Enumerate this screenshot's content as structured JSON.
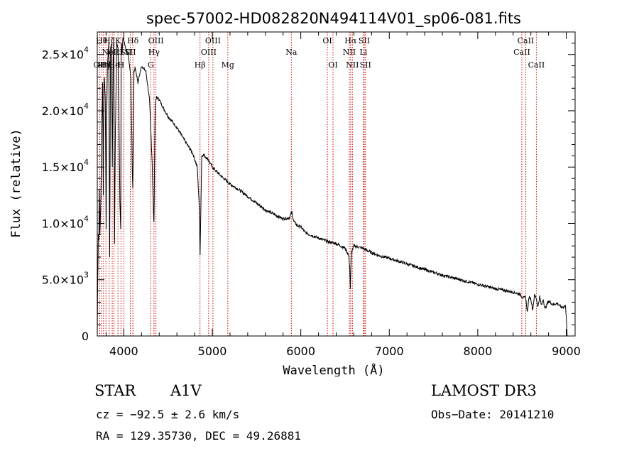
{
  "chart_data": {
    "type": "line",
    "title": "spec-57002-HD082820N494114V01_sp06-081.fits",
    "xlabel": "Wavelength (Å)",
    "ylabel": "Flux (relative)",
    "xlim": [
      3700,
      9100
    ],
    "ylim": [
      0,
      27000
    ],
    "xticks": [
      4000,
      5000,
      6000,
      7000,
      8000,
      9000
    ],
    "yticks": [
      {
        "value": 0,
        "mant": "0",
        "exp": ""
      },
      {
        "value": 5000,
        "mant": "5.0×10",
        "exp": "3"
      },
      {
        "value": 10000,
        "mant": "1.0×10",
        "exp": "4"
      },
      {
        "value": 15000,
        "mant": "1.5×10",
        "exp": "4"
      },
      {
        "value": 20000,
        "mant": "2.0×10",
        "exp": "4"
      },
      {
        "value": 25000,
        "mant": "2.5×10",
        "exp": "4"
      }
    ],
    "spectrum": {
      "x": [
        3700,
        3705,
        3712,
        3718,
        3722,
        3726,
        3730,
        3740,
        3750,
        3760,
        3768,
        3771,
        3775,
        3780,
        3790,
        3797,
        3800,
        3805,
        3815,
        3830,
        3836,
        3840,
        3850,
        3860,
        3870,
        3880,
        3887,
        3890,
        3895,
        3905,
        3920,
        3935,
        3945,
        3955,
        3965,
        3970,
        3975,
        3980,
        3990,
        4000,
        4010,
        4030,
        4050,
        4080,
        4095,
        4101,
        4108,
        4115,
        4130,
        4160,
        4200,
        4250,
        4290,
        4320,
        4335,
        4341,
        4347,
        4355,
        4370,
        4400,
        4450,
        4500,
        4600,
        4700,
        4780,
        4830,
        4850,
        4857,
        4862,
        4867,
        4872,
        4880,
        4900,
        4950,
        5000,
        5100,
        5200,
        5300,
        5400,
        5500,
        5600,
        5700,
        5800,
        5870,
        5900,
        5920,
        5960,
        6000,
        6050,
        6100,
        6200,
        6300,
        6400,
        6500,
        6540,
        6553,
        6560,
        6566,
        6575,
        6600,
        6700,
        6800,
        6900,
        7000,
        7200,
        7400,
        7600,
        7800,
        8000,
        8200,
        8400,
        8480,
        8500,
        8520,
        8540,
        8560,
        8580,
        8600,
        8620,
        8640,
        8660,
        8680,
        8700,
        8720,
        8740,
        8760,
        8800,
        8850,
        8900,
        8950,
        8990,
        9000,
        9010
      ],
      "y": [
        0,
        5000,
        9000,
        8500,
        13000,
        11500,
        9000,
        12000,
        17500,
        22500,
        12500,
        18000,
        22000,
        23000,
        21000,
        13500,
        9500,
        18500,
        24000,
        26000,
        15000,
        7000,
        25500,
        26000,
        15000,
        24500,
        26500,
        20000,
        8200,
        18000,
        26000,
        25500,
        20000,
        12000,
        9500,
        25000,
        26000,
        25000,
        26500,
        26200,
        26000,
        25200,
        25000,
        23000,
        15000,
        13000,
        17000,
        23500,
        23800,
        22500,
        24000,
        23500,
        21000,
        15500,
        11000,
        10000,
        15000,
        20500,
        21200,
        21000,
        20200,
        19500,
        18500,
        17200,
        16200,
        15000,
        12000,
        9500,
        7300,
        9500,
        12000,
        16000,
        16100,
        15700,
        15000,
        14200,
        13500,
        13000,
        12400,
        11800,
        11200,
        10800,
        10400,
        10500,
        11000,
        10200,
        9800,
        9700,
        9200,
        9000,
        8700,
        8400,
        8200,
        7800,
        7200,
        6200,
        4200,
        6000,
        7500,
        8000,
        7800,
        7400,
        7100,
        6900,
        6400,
        5900,
        5400,
        5000,
        4600,
        4200,
        3900,
        3700,
        3500,
        3350,
        3500,
        2100,
        3500,
        3300,
        2300,
        3600,
        3400,
        2600,
        3500,
        2700,
        3300,
        2400,
        3100,
        2800,
        2900,
        2500,
        2700,
        1800,
        0
      ]
    },
    "lines": [
      {
        "wave": 3727,
        "label": "OII",
        "row": 3
      },
      {
        "wave": 3750,
        "label": "Hθ",
        "row": 1
      },
      {
        "wave": 3771,
        "label": "Hη",
        "row": 3
      },
      {
        "wave": 3798,
        "label": "Hζ",
        "row": 3
      },
      {
        "wave": 3835,
        "label": "Hζ",
        "row": 1
      },
      {
        "wave": 3869,
        "label": "NeIII",
        "row": 2
      },
      {
        "wave": 3889,
        "label": "He",
        "row": 3
      },
      {
        "wave": 3934,
        "label": "K",
        "row": 1
      },
      {
        "wave": 3968,
        "label": "H",
        "row": 3
      },
      {
        "wave": 4000,
        "label": "εSII",
        "row": 2
      },
      {
        "wave": 4102,
        "label": "Hδ",
        "row": 1
      },
      {
        "wave": 4073,
        "label": "SII",
        "row": 2
      },
      {
        "wave": 4304,
        "label": "G",
        "row": 3
      },
      {
        "wave": 4341,
        "label": "Hγ",
        "row": 2
      },
      {
        "wave": 4363,
        "label": "OIII",
        "row": 1
      },
      {
        "wave": 4861,
        "label": "Hβ",
        "row": 3
      },
      {
        "wave": 4959,
        "label": "OIII",
        "row": 2
      },
      {
        "wave": 5007,
        "label": "OIII",
        "row": 1
      },
      {
        "wave": 5175,
        "label": "Mg",
        "row": 3
      },
      {
        "wave": 5893,
        "label": "Na",
        "row": 2
      },
      {
        "wave": 6300,
        "label": "OI",
        "row": 1
      },
      {
        "wave": 6364,
        "label": "OI",
        "row": 3
      },
      {
        "wave": 6548,
        "label": "NII",
        "row": 2
      },
      {
        "wave": 6563,
        "label": "Hα",
        "row": 1
      },
      {
        "wave": 6583,
        "label": "NII",
        "row": 3
      },
      {
        "wave": 6708,
        "label": "Li",
        "row": 2
      },
      {
        "wave": 6717,
        "label": "SII",
        "row": 1
      },
      {
        "wave": 6731,
        "label": "SII",
        "row": 3
      },
      {
        "wave": 8498,
        "label": "CaII",
        "row": 2
      },
      {
        "wave": 8542,
        "label": "CaII",
        "row": 1
      },
      {
        "wave": 8662,
        "label": "CaII",
        "row": 3
      }
    ]
  },
  "info": {
    "class": "STAR",
    "subclass": "A1V",
    "survey": "LAMOST DR3",
    "cz": "cz = −92.5 ± 2.6 km/s",
    "obs_date": "Obs−Date: 20141210",
    "coords": "RA = 129.35730, DEC =  49.26881"
  },
  "colors": {
    "axis": "#000000",
    "line_marker": "#cc0000",
    "spectrum": "#000000"
  }
}
